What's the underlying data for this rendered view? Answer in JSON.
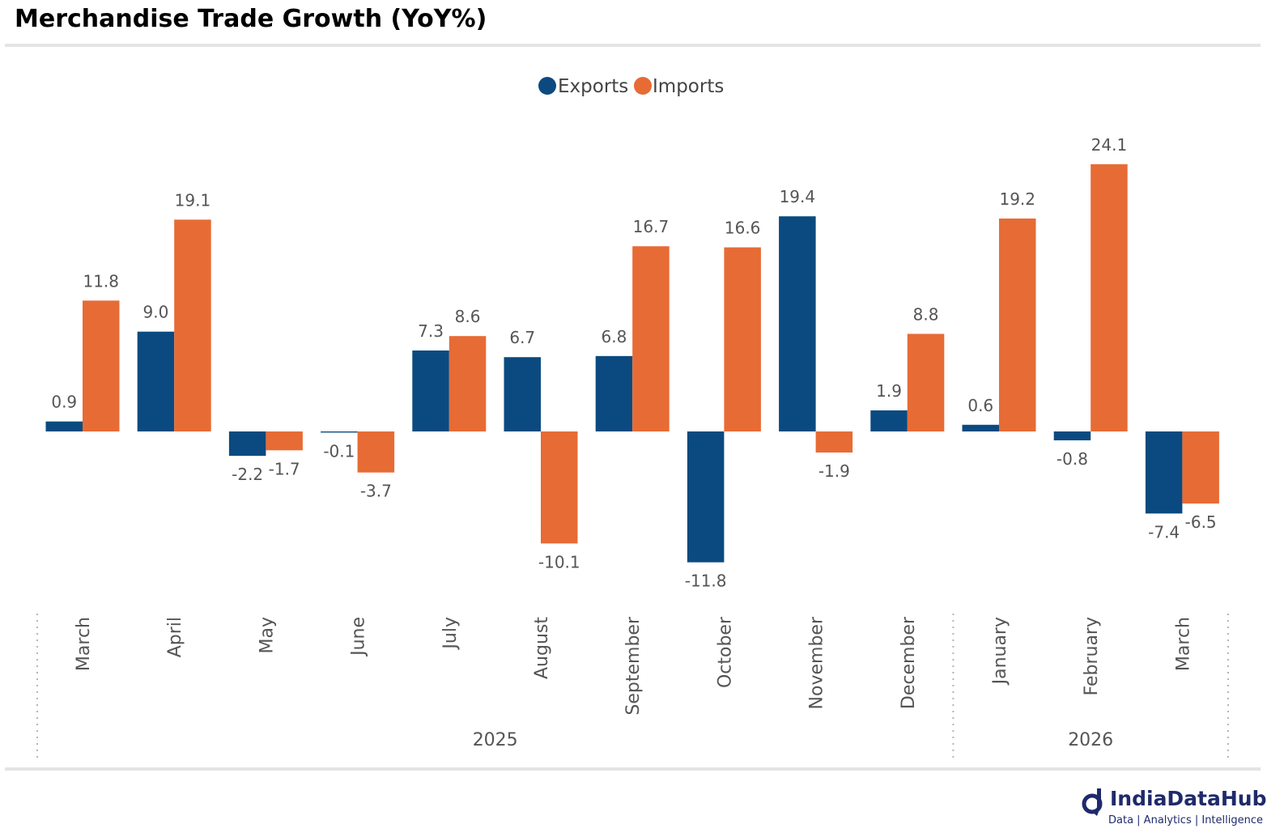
{
  "title": "Merchandise Trade Growth (YoY%)",
  "brand": {
    "name": "IndiaDataHub",
    "tagline": "Data | Analytics | Intelligence"
  },
  "colors": {
    "exports": "#0b4a80",
    "imports": "#e76b35",
    "label": "#555555",
    "rule": "#e4e4e4",
    "brand": "#1f2a6b"
  },
  "chart_data": {
    "type": "bar",
    "categories": [
      "March",
      "April",
      "May",
      "June",
      "July",
      "August",
      "September",
      "October",
      "November",
      "December",
      "January",
      "February",
      "March"
    ],
    "groups": [
      {
        "label": "2025",
        "count": 10
      },
      {
        "label": "2026",
        "count": 3
      }
    ],
    "legend": {
      "position": "top-center"
    },
    "grid": false,
    "series": [
      {
        "name": "Exports",
        "values": [
          0.9,
          9.0,
          -2.2,
          -0.1,
          7.3,
          6.7,
          6.8,
          -11.8,
          19.4,
          1.9,
          0.6,
          -0.8,
          -7.4
        ]
      },
      {
        "name": "Imports",
        "values": [
          11.8,
          19.1,
          -1.7,
          -3.7,
          8.6,
          -10.1,
          16.7,
          16.6,
          -1.9,
          8.8,
          19.2,
          24.1,
          -6.5
        ]
      }
    ],
    "ylim": [
      -13,
      28
    ]
  }
}
